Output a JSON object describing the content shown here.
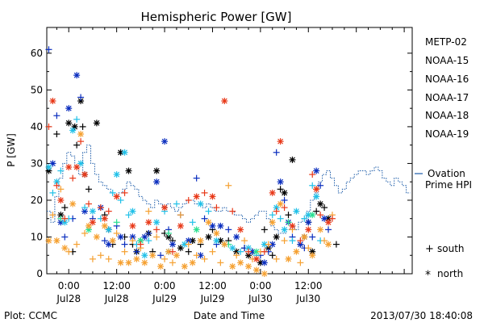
{
  "chart_data": {
    "type": "scatter",
    "title": "Hemispheric Power [GW]",
    "ylabel": "P [GW]",
    "xlabel": "Date and Time",
    "ylim": [
      0,
      67
    ],
    "y_ticks": [
      0,
      10,
      20,
      30,
      40,
      50,
      60
    ],
    "x_range_hours": [
      -5.5,
      86
    ],
    "x_ticks": [
      {
        "hour": 0,
        "time": "0:00",
        "date": "Jul28"
      },
      {
        "hour": 12,
        "time": "12:00",
        "date": "Jul28"
      },
      {
        "hour": 24,
        "time": "0:00",
        "date": "Jul29"
      },
      {
        "hour": 36,
        "time": "12:00",
        "date": "Jul29"
      },
      {
        "hour": 48,
        "time": "0:00",
        "date": "Jul30"
      },
      {
        "hour": 60,
        "time": "12:00",
        "date": "Jul30"
      }
    ],
    "series": [
      {
        "name": "METP-02",
        "color": "#000000",
        "marker": "mixed",
        "points": [
          [
            -5,
            28
          ],
          [
            -3,
            38
          ],
          [
            -2,
            16
          ],
          [
            -1,
            18
          ],
          [
            0,
            41
          ],
          [
            1,
            6
          ],
          [
            1.5,
            40
          ],
          [
            2,
            35
          ],
          [
            3,
            47
          ],
          [
            3.5,
            40
          ],
          [
            4,
            27
          ],
          [
            5,
            23
          ],
          [
            7,
            41
          ],
          [
            9,
            16
          ],
          [
            10,
            12
          ],
          [
            11,
            8
          ],
          [
            13,
            33
          ],
          [
            14,
            10
          ],
          [
            15,
            28
          ],
          [
            16,
            8
          ],
          [
            17,
            6
          ],
          [
            18,
            9
          ],
          [
            20,
            11
          ],
          [
            21,
            6
          ],
          [
            22,
            28
          ],
          [
            24,
            11
          ],
          [
            25,
            10
          ],
          [
            26,
            9
          ],
          [
            28,
            7
          ],
          [
            30,
            6
          ],
          [
            31,
            9
          ],
          [
            33,
            8
          ],
          [
            35,
            10
          ],
          [
            36,
            12
          ],
          [
            38,
            9
          ],
          [
            40,
            9
          ],
          [
            42,
            6
          ],
          [
            44,
            7
          ],
          [
            45,
            5
          ],
          [
            46,
            6
          ],
          [
            48,
            3
          ],
          [
            49,
            12
          ],
          [
            50,
            7
          ],
          [
            51,
            5
          ],
          [
            52,
            10
          ],
          [
            53,
            23
          ],
          [
            54,
            22
          ],
          [
            55,
            16
          ],
          [
            56,
            31
          ],
          [
            58,
            8
          ],
          [
            59,
            10
          ],
          [
            60,
            14
          ],
          [
            61,
            6
          ],
          [
            62,
            17
          ],
          [
            63,
            19
          ],
          [
            64,
            18
          ],
          [
            65,
            15
          ],
          [
            67,
            8
          ]
        ]
      },
      {
        "name": "NOAA-15",
        "color": "#0a2dbe",
        "marker": "mixed",
        "points": [
          [
            -5,
            61
          ],
          [
            -4,
            30
          ],
          [
            -3,
            43
          ],
          [
            -2,
            14
          ],
          [
            -1,
            10
          ],
          [
            0,
            45
          ],
          [
            1,
            15
          ],
          [
            2,
            54
          ],
          [
            3,
            48
          ],
          [
            4,
            17
          ],
          [
            6,
            15
          ],
          [
            8,
            18
          ],
          [
            9,
            9
          ],
          [
            10,
            8
          ],
          [
            12,
            13
          ],
          [
            13,
            10
          ],
          [
            14,
            8
          ],
          [
            16,
            10
          ],
          [
            17,
            6
          ],
          [
            19,
            10
          ],
          [
            20,
            11
          ],
          [
            22,
            25
          ],
          [
            23,
            5
          ],
          [
            24,
            36
          ],
          [
            25,
            12
          ],
          [
            26,
            8
          ],
          [
            28,
            16
          ],
          [
            30,
            9
          ],
          [
            32,
            26
          ],
          [
            33,
            5
          ],
          [
            34,
            15
          ],
          [
            36,
            13
          ],
          [
            37,
            8
          ],
          [
            38,
            13
          ],
          [
            40,
            12
          ],
          [
            42,
            10
          ],
          [
            44,
            7
          ],
          [
            46,
            6
          ],
          [
            48,
            5
          ],
          [
            49,
            3
          ],
          [
            50,
            6
          ],
          [
            51,
            8
          ],
          [
            52,
            33
          ],
          [
            53,
            25
          ],
          [
            54,
            20
          ],
          [
            55,
            14
          ],
          [
            56,
            10
          ],
          [
            58,
            8
          ],
          [
            59,
            7
          ],
          [
            60,
            14
          ],
          [
            61,
            10
          ],
          [
            62,
            28
          ],
          [
            63,
            24
          ],
          [
            64,
            15
          ],
          [
            65,
            12
          ]
        ]
      },
      {
        "name": "NOAA-16",
        "color": "#20c0e8",
        "marker": "mixed",
        "points": [
          [
            -5,
            29
          ],
          [
            -4,
            22
          ],
          [
            -3,
            25
          ],
          [
            -2,
            28
          ],
          [
            -1,
            14
          ],
          [
            0,
            15
          ],
          [
            1,
            39
          ],
          [
            2,
            42
          ],
          [
            3,
            30
          ],
          [
            4,
            18
          ],
          [
            6,
            17
          ],
          [
            8,
            15
          ],
          [
            10,
            12
          ],
          [
            11,
            22
          ],
          [
            12,
            27
          ],
          [
            13,
            20
          ],
          [
            14,
            33
          ],
          [
            15,
            16
          ],
          [
            16,
            17
          ],
          [
            17,
            8
          ],
          [
            19,
            5
          ],
          [
            20,
            9
          ],
          [
            22,
            14
          ],
          [
            24,
            17
          ],
          [
            25,
            6
          ],
          [
            27,
            19
          ],
          [
            29,
            8
          ],
          [
            31,
            14
          ],
          [
            33,
            19
          ],
          [
            35,
            17
          ],
          [
            37,
            9
          ],
          [
            39,
            8
          ],
          [
            41,
            7
          ],
          [
            43,
            6
          ],
          [
            45,
            7
          ],
          [
            47,
            5
          ],
          [
            49,
            8
          ],
          [
            51,
            16
          ],
          [
            52,
            18
          ],
          [
            53,
            15
          ],
          [
            54,
            12
          ],
          [
            56,
            9
          ],
          [
            57,
            17
          ],
          [
            59,
            15
          ],
          [
            60,
            16
          ],
          [
            61,
            24
          ],
          [
            62,
            21
          ],
          [
            63,
            9
          ]
        ]
      },
      {
        "name": "NOAA-17",
        "color": "#28e090",
        "marker": "mixed",
        "points": [
          [
            -2,
            15
          ],
          [
            5,
            12
          ],
          [
            12,
            14
          ],
          [
            18,
            9
          ],
          [
            25,
            11
          ],
          [
            32,
            12
          ],
          [
            40,
            8
          ],
          [
            47,
            6
          ],
          [
            55,
            14
          ],
          [
            61,
            16
          ]
        ]
      },
      {
        "name": "NOAA-18",
        "color": "#f5a030",
        "marker": "mixed",
        "points": [
          [
            -5,
            9
          ],
          [
            -4,
            16
          ],
          [
            -3,
            9
          ],
          [
            -2,
            23
          ],
          [
            -1,
            7
          ],
          [
            0,
            6
          ],
          [
            1,
            19
          ],
          [
            2,
            8
          ],
          [
            3,
            38
          ],
          [
            4,
            11
          ],
          [
            5,
            13
          ],
          [
            6,
            4
          ],
          [
            7,
            10
          ],
          [
            8,
            5
          ],
          [
            9,
            13
          ],
          [
            10,
            4
          ],
          [
            11,
            9
          ],
          [
            12,
            11
          ],
          [
            13,
            3
          ],
          [
            14,
            6
          ],
          [
            15,
            3
          ],
          [
            16,
            9
          ],
          [
            17,
            4
          ],
          [
            18,
            7
          ],
          [
            19,
            3
          ],
          [
            20,
            17
          ],
          [
            21,
            5
          ],
          [
            22,
            10
          ],
          [
            23,
            2
          ],
          [
            24,
            4
          ],
          [
            25,
            6
          ],
          [
            26,
            3
          ],
          [
            27,
            5
          ],
          [
            28,
            16
          ],
          [
            29,
            2
          ],
          [
            30,
            8
          ],
          [
            31,
            3
          ],
          [
            32,
            5
          ],
          [
            33,
            9
          ],
          [
            34,
            4
          ],
          [
            35,
            14
          ],
          [
            36,
            6
          ],
          [
            37,
            11
          ],
          [
            38,
            3
          ],
          [
            39,
            8
          ],
          [
            40,
            24
          ],
          [
            41,
            2
          ],
          [
            42,
            5
          ],
          [
            43,
            3
          ],
          [
            44,
            9
          ],
          [
            45,
            2
          ],
          [
            46,
            4
          ],
          [
            47,
            1
          ],
          [
            48,
            6
          ],
          [
            49,
            0
          ],
          [
            50,
            8
          ],
          [
            51,
            14
          ],
          [
            52,
            4
          ],
          [
            53,
            19
          ],
          [
            54,
            9
          ],
          [
            55,
            4
          ],
          [
            56,
            12
          ],
          [
            57,
            6
          ],
          [
            58,
            3
          ],
          [
            59,
            10
          ],
          [
            60,
            7
          ],
          [
            61,
            5
          ],
          [
            62,
            23
          ],
          [
            63,
            12
          ],
          [
            64,
            9
          ],
          [
            65,
            8
          ],
          [
            66,
            16
          ]
        ]
      },
      {
        "name": "NOAA-19",
        "color": "#e83818",
        "marker": "mixed",
        "points": [
          [
            -5,
            40
          ],
          [
            -4,
            47
          ],
          [
            -3,
            24
          ],
          [
            -2,
            20
          ],
          [
            -1,
            15
          ],
          [
            0,
            29
          ],
          [
            1,
            26
          ],
          [
            2,
            29
          ],
          [
            3,
            36
          ],
          [
            4,
            27
          ],
          [
            5,
            19
          ],
          [
            6,
            14
          ],
          [
            8,
            18
          ],
          [
            9,
            15
          ],
          [
            10,
            17
          ],
          [
            12,
            21
          ],
          [
            14,
            22
          ],
          [
            16,
            13
          ],
          [
            18,
            8
          ],
          [
            20,
            14
          ],
          [
            22,
            12
          ],
          [
            24,
            18
          ],
          [
            26,
            6
          ],
          [
            28,
            13
          ],
          [
            30,
            20
          ],
          [
            32,
            21
          ],
          [
            34,
            22
          ],
          [
            36,
            21
          ],
          [
            37,
            18
          ],
          [
            39,
            47
          ],
          [
            41,
            17
          ],
          [
            43,
            12
          ],
          [
            45,
            6
          ],
          [
            47,
            4
          ],
          [
            49,
            6
          ],
          [
            51,
            22
          ],
          [
            52,
            17
          ],
          [
            53,
            36
          ],
          [
            54,
            18
          ],
          [
            56,
            13
          ],
          [
            58,
            9
          ],
          [
            60,
            12
          ],
          [
            61,
            27
          ],
          [
            62,
            23
          ],
          [
            63,
            16
          ],
          [
            65,
            14
          ],
          [
            66,
            15
          ]
        ]
      }
    ],
    "ovation_prime": {
      "name": "Ovation Prime HPI",
      "color": "#1a5aa8",
      "x_step_hours": 1,
      "x_start": -5.5,
      "values": [
        17,
        14,
        21,
        26,
        30,
        33,
        32,
        29,
        27,
        33,
        35,
        30,
        27,
        25,
        24,
        23,
        22,
        21,
        22,
        23,
        25,
        24,
        23,
        21,
        20,
        19,
        18,
        20,
        19,
        18,
        19,
        18,
        17,
        18,
        19,
        20,
        20,
        19,
        19,
        18,
        19,
        18,
        17,
        17,
        18,
        17,
        17,
        16,
        16,
        15,
        14,
        15,
        16,
        17,
        17,
        15,
        13,
        12,
        11,
        11,
        12,
        13,
        12,
        14,
        15,
        17,
        20,
        22,
        25,
        27,
        28,
        26,
        24,
        22,
        23,
        25,
        26,
        27,
        28,
        28,
        27,
        28,
        29,
        28,
        26,
        25,
        24,
        26,
        25,
        24,
        22
      ]
    },
    "legend": {
      "placement": "right",
      "entries": [
        "METP-02",
        "NOAA-15",
        "NOAA-16",
        "NOAA-17",
        "NOAA-18",
        "NOAA-19"
      ],
      "colors": [
        "#000000",
        "#0a2dbe",
        "#20c0e8",
        "#28e090",
        "#f5a030",
        "#e83818"
      ],
      "ovation_label_line1": "Ovation",
      "ovation_label_line2": "Prime HPI",
      "marker_key": [
        {
          "symbol": "+",
          "label": "south"
        },
        {
          "symbol": "*",
          "label": "north"
        }
      ]
    },
    "footer": {
      "left": "Plot: CCMC",
      "right": "2013/07/30 18:40:08"
    }
  }
}
